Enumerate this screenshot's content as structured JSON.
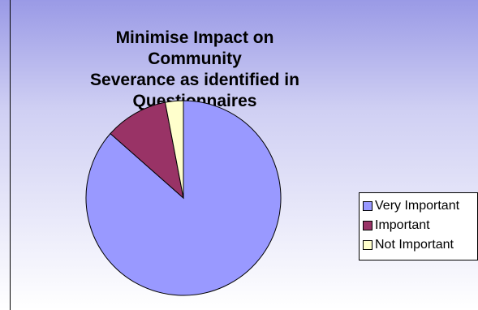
{
  "chart_data": {
    "type": "pie",
    "title_lines": [
      "Minimise Impact on Community",
      "Severance as identified in",
      "Questionnaires"
    ],
    "categories": [
      "Very Important",
      "Important",
      "Not Important"
    ],
    "values": [
      86.5,
      10.5,
      3.0
    ],
    "colors": [
      "#9999ff",
      "#993366",
      "#ffffcc"
    ],
    "legend_position": "right"
  }
}
